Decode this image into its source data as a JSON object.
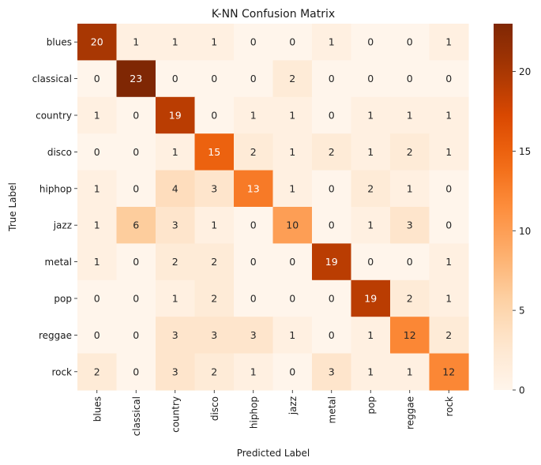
{
  "chart_data": {
    "type": "heatmap",
    "title": "K-NN Confusion Matrix",
    "xlabel": "Predicted Label",
    "ylabel": "True Label",
    "x_categories": [
      "blues",
      "classical",
      "country",
      "disco",
      "hiphop",
      "jazz",
      "metal",
      "pop",
      "reggae",
      "rock"
    ],
    "y_categories": [
      "blues",
      "classical",
      "country",
      "disco",
      "hiphop",
      "jazz",
      "metal",
      "pop",
      "reggae",
      "rock"
    ],
    "values": [
      [
        20,
        1,
        1,
        1,
        0,
        0,
        1,
        0,
        0,
        1
      ],
      [
        0,
        23,
        0,
        0,
        0,
        2,
        0,
        0,
        0,
        0
      ],
      [
        1,
        0,
        19,
        0,
        1,
        1,
        0,
        1,
        1,
        1
      ],
      [
        0,
        0,
        1,
        15,
        2,
        1,
        2,
        1,
        2,
        1
      ],
      [
        1,
        0,
        4,
        3,
        13,
        1,
        0,
        2,
        1,
        0
      ],
      [
        1,
        6,
        3,
        1,
        0,
        10,
        0,
        1,
        3,
        0
      ],
      [
        1,
        0,
        2,
        2,
        0,
        0,
        19,
        0,
        0,
        1
      ],
      [
        0,
        0,
        1,
        2,
        0,
        0,
        0,
        19,
        2,
        1
      ],
      [
        0,
        0,
        3,
        3,
        3,
        1,
        0,
        1,
        12,
        2
      ],
      [
        2,
        0,
        3,
        2,
        1,
        0,
        3,
        1,
        1,
        12
      ]
    ],
    "colormap": "Oranges",
    "vmin": 0,
    "vmax": 23,
    "colorbar_ticks": [
      0,
      5,
      10,
      15,
      20
    ],
    "annotation_light_color": "#ffffff",
    "annotation_dark_color": "#262626",
    "legend": "colorbar-right"
  }
}
